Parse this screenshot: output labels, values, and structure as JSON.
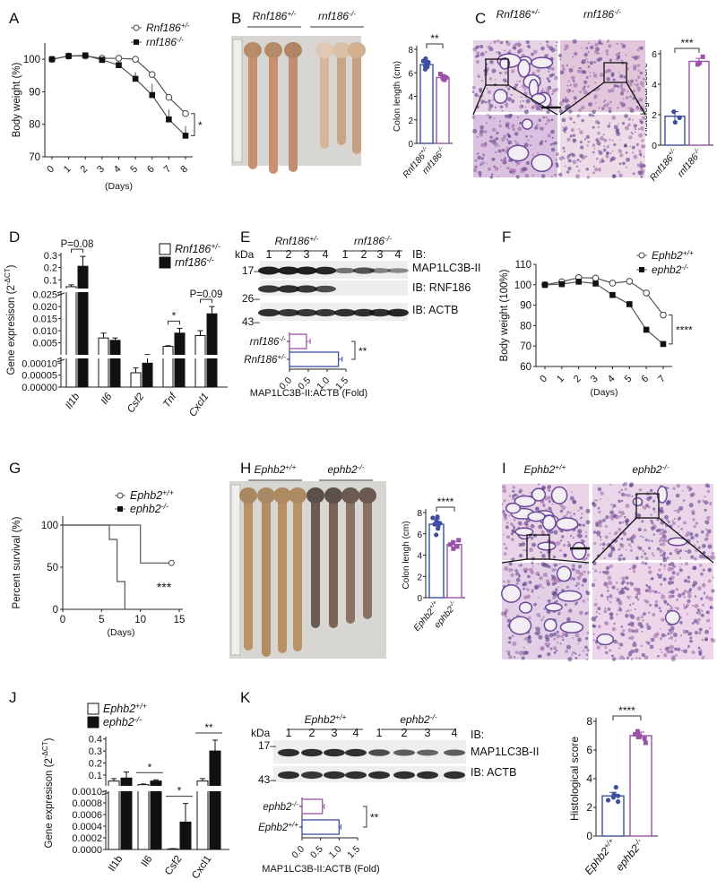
{
  "colors": {
    "wt": "#3c4ea0",
    "ko": "#9a52a8",
    "line": "#555555",
    "axis": "#222222"
  },
  "panels": [
    "A",
    "B",
    "C",
    "D",
    "E",
    "F",
    "G",
    "H",
    "I",
    "J",
    "K"
  ],
  "genotypes": {
    "rnf_het": {
      "name": "Rnf186",
      "sup": "+/-"
    },
    "rnf_ko": {
      "name": "rnf186",
      "sup": "-/-"
    },
    "eph_wt": {
      "name": "Ephb2",
      "sup": "+/+"
    },
    "eph_ko": {
      "name": "ephb2",
      "sup": "-/-"
    }
  },
  "photos": {
    "B": {
      "labels": [
        "rnf_het",
        "rnf_ko"
      ]
    },
    "H": {
      "labels": [
        "eph_wt",
        "eph_ko"
      ]
    }
  },
  "histology": {
    "C": {
      "labels": [
        "rnf_het",
        "rnf_ko"
      ]
    },
    "I": {
      "labels": [
        "eph_wt",
        "eph_ko"
      ]
    }
  },
  "blots": {
    "E": {
      "kda": "kDa",
      "markers": [
        "17–",
        "26–",
        "43–"
      ],
      "lanes": [
        "1",
        "2",
        "3",
        "4",
        "1",
        "2",
        "3",
        "4"
      ],
      "groups": [
        "rnf_het",
        "rnf_ko"
      ],
      "rows": [
        "IB:",
        "MAP1LC3B-II",
        "IB: RNF186",
        "IB: ACTB"
      ],
      "band_intensity": [
        [
          1,
          1,
          1,
          0.95,
          0.45,
          0.65,
          0.35,
          0.3
        ],
        [
          0.85,
          0.9,
          0.85,
          0.7,
          0,
          0,
          0,
          0
        ],
        [
          0.9,
          0.85,
          0.85,
          0.85,
          0.9,
          0.9,
          0.9,
          0.95
        ]
      ]
    },
    "K": {
      "kda": "kDa",
      "markers": [
        "17–",
        "43–"
      ],
      "lanes": [
        "1",
        "2",
        "3",
        "4",
        "1",
        "2",
        "3",
        "4"
      ],
      "groups": [
        "eph_wt",
        "eph_ko"
      ],
      "rows": [
        "IB:",
        "MAP1LC3B-II",
        "IB: ACTB"
      ],
      "band_intensity": [
        [
          0.9,
          0.9,
          0.9,
          0.9,
          0.7,
          0.6,
          0.55,
          0.6
        ],
        [
          0.9,
          0.85,
          0.9,
          0.9,
          0.9,
          0.9,
          0.9,
          0.9
        ]
      ]
    }
  },
  "chart_data": [
    {
      "panel": "A",
      "type": "line",
      "xlabel": "(Days)",
      "ylabel": "Body weight (%)",
      "ylim": [
        70,
        105
      ],
      "yticks": [
        70,
        80,
        90,
        100
      ],
      "x": [
        0,
        1,
        2,
        3,
        4,
        5,
        6,
        7,
        8
      ],
      "series": [
        {
          "geno": "rnf_het",
          "marker": "open-circle",
          "values": [
            100,
            101,
            101,
            100.3,
            100.3,
            100,
            95.3,
            88.3,
            83.3
          ],
          "err": [
            0,
            0,
            0,
            0,
            0,
            0,
            1,
            1,
            1
          ]
        },
        {
          "geno": "rnf_ko",
          "marker": "filled-square",
          "values": [
            100,
            101,
            101.2,
            99.8,
            98.2,
            94,
            89,
            81.5,
            76.5
          ],
          "err": [
            0,
            0,
            0,
            0,
            0,
            2,
            3.5,
            3,
            3
          ]
        }
      ],
      "significance": "*"
    },
    {
      "panel": "B",
      "type": "bar",
      "ylabel": "Colon length (cm)",
      "ylim": [
        0,
        8
      ],
      "yticks": [
        0,
        2,
        4,
        6,
        8
      ],
      "categories": [
        "rnf_het",
        "rnf_ko"
      ],
      "values": [
        6.7,
        5.6
      ],
      "err": [
        0.3,
        0.25
      ],
      "points": [
        [
          7.2,
          7.0,
          6.9,
          6.7,
          6.5,
          6.3,
          6.8,
          6.6
        ],
        [
          5.9,
          5.7,
          5.5,
          5.4,
          5.6
        ]
      ],
      "significance": "**"
    },
    {
      "panel": "C",
      "type": "bar",
      "ylabel": "Histological score",
      "ylim": [
        0,
        6
      ],
      "yticks": [
        0,
        2,
        4,
        6
      ],
      "categories": [
        "rnf_het",
        "rnf_ko"
      ],
      "values": [
        1.9,
        5.5
      ],
      "err": [
        0.3,
        0.2
      ],
      "points": [
        [
          2.2,
          1.8,
          1.5
        ],
        [
          5.8,
          5.4,
          5.3
        ]
      ],
      "significance": "***"
    },
    {
      "panel": "D",
      "type": "bar",
      "ylabel": "Gene expresison (2",
      "ylabel_sup": "-ΔCT",
      "ylabel_end": ")",
      "legend": [
        "rnf_het",
        "rnf_ko"
      ],
      "axis_segments": [
        {
          "min": 0,
          "max": 0.00012,
          "ticks": [
            0,
            5e-05,
            0.0001
          ],
          "tick_labels": [
            "0.00000",
            "0.00005",
            "0.00010"
          ]
        },
        {
          "min": 0,
          "max": 0.026,
          "ticks": [
            0.005,
            0.01,
            0.015,
            0.02,
            0.025
          ],
          "tick_labels": [
            "0.005",
            "0.010",
            "0.015",
            "0.020",
            "0.025"
          ]
        },
        {
          "min": 0.03,
          "max": 0.32,
          "ticks": [
            0.1,
            0.2,
            0.3
          ],
          "tick_labels": [
            "0.1",
            "0.2",
            "0.3"
          ]
        }
      ],
      "categories": [
        "Il1b",
        "Il6",
        "Csf2",
        "Tnf",
        "Cxcl1"
      ],
      "series": [
        {
          "geno": "rnf_het",
          "values": [
            0.045,
            0.007,
            6e-05,
            0.0035,
            0.008
          ],
          "err": [
            0.015,
            0.002,
            2e-05,
            0.0003,
            0.002
          ]
        },
        {
          "geno": "rnf_ko",
          "values": [
            0.21,
            0.006,
            0.0001,
            0.009,
            0.017
          ],
          "err": [
            0.08,
            0.001,
            3e-05,
            0.002,
            0.003
          ]
        }
      ],
      "annotations": [
        {
          "category": "Il1b",
          "text": "P=0.08"
        },
        {
          "category": "Tnf",
          "text": "*"
        },
        {
          "category": "Cxcl1",
          "text": "P=0.09"
        }
      ]
    },
    {
      "panel": "E",
      "type": "bar",
      "orientation": "horizontal",
      "xlabel": "MAP1LC3B-II:ACTB (Fold)",
      "xlim": [
        0,
        1.5
      ],
      "xticks": [
        0,
        0.5,
        1,
        1.5
      ],
      "xtick_labels": [
        "0.0",
        "0.5",
        "1.0",
        "1.5"
      ],
      "categories": [
        "rnf_ko",
        "rnf_het"
      ],
      "values": [
        0.45,
        1.3
      ],
      "err": [
        0.1,
        0.1
      ],
      "significance": "**"
    },
    {
      "panel": "F",
      "type": "line",
      "xlabel": "(Days)",
      "ylabel": "Body weight (100%)",
      "ylim": [
        60,
        110
      ],
      "yticks": [
        60,
        70,
        80,
        90,
        100,
        110
      ],
      "x": [
        0,
        1,
        2,
        3,
        4,
        5,
        6,
        7
      ],
      "series": [
        {
          "geno": "eph_wt",
          "marker": "open-circle",
          "values": [
            100,
            101.5,
            103.5,
            103.3,
            100.8,
            101.7,
            96,
            85.2
          ],
          "err": [
            0,
            0,
            0,
            0,
            0,
            0,
            0,
            0
          ]
        },
        {
          "geno": "eph_ko",
          "marker": "filled-square",
          "values": [
            100,
            100.3,
            101.5,
            100.6,
            95,
            90.5,
            78,
            71
          ],
          "err": [
            0,
            0,
            0,
            0,
            0,
            1.5,
            1.5,
            0
          ]
        }
      ],
      "significance": "****"
    },
    {
      "panel": "G",
      "type": "line",
      "subtype": "survival",
      "xlabel": "(Days)",
      "ylabel": "Percent survival (%)",
      "xlim": [
        0,
        15
      ],
      "xticks": [
        0,
        5,
        10,
        15
      ],
      "ylim": [
        0,
        100
      ],
      "yticks": [
        0,
        50,
        100
      ],
      "series": [
        {
          "geno": "eph_wt",
          "steps": [
            [
              0,
              100
            ],
            [
              10,
              100
            ],
            [
              10,
              55
            ],
            [
              14,
              55
            ]
          ],
          "censored": [
            [
              14,
              55
            ]
          ]
        },
        {
          "geno": "eph_ko",
          "steps": [
            [
              0,
              100
            ],
            [
              6,
              100
            ],
            [
              6,
              83
            ],
            [
              7,
              83
            ],
            [
              7,
              33
            ],
            [
              8,
              33
            ],
            [
              8,
              0
            ]
          ]
        }
      ],
      "significance": "***"
    },
    {
      "panel": "H",
      "type": "bar",
      "ylabel": "Colon lengh (cm)",
      "ylim": [
        0,
        8
      ],
      "yticks": [
        0,
        2,
        4,
        6,
        8
      ],
      "categories": [
        "eph_wt",
        "eph_ko"
      ],
      "values": [
        6.9,
        5.0
      ],
      "err": [
        0.5,
        0.3
      ],
      "points": [
        [
          7.6,
          7.5,
          7.2,
          7.0,
          6.9,
          6.7,
          6.5,
          5.9
        ],
        [
          5.4,
          5.2,
          5.0,
          4.8,
          4.6
        ]
      ],
      "significance": "****"
    },
    {
      "panel": "J",
      "type": "bar",
      "ylabel": "Gene expresison (2",
      "ylabel_sup": "-ΔCT",
      "ylabel_end": ")",
      "legend": [
        "eph_wt",
        "eph_ko"
      ],
      "axis_segments": [
        {
          "min": 0,
          "max": 0.001,
          "ticks": [
            0,
            0.0002,
            0.0004,
            0.0006,
            0.0008,
            0.001
          ],
          "tick_labels": [
            "0.0000",
            "0.0002",
            "0.0004",
            "0.0006",
            "0.0008",
            "0.0010"
          ]
        },
        {
          "min": 0.01,
          "max": 0.42,
          "ticks": [
            0.1,
            0.2,
            0.3,
            0.4
          ],
          "tick_labels": [
            "0.1",
            "0.2",
            "0.3",
            "0.4"
          ]
        }
      ],
      "categories": [
        "Il1b",
        "Il6",
        "Csf2",
        "Cxcl1"
      ],
      "series": [
        {
          "geno": "eph_wt",
          "values": [
            0.05,
            0.02,
            1e-05,
            0.05
          ],
          "err": [
            0.02,
            0.005,
            5e-06,
            0.02
          ]
        },
        {
          "geno": "eph_ko",
          "values": [
            0.075,
            0.05,
            0.00047,
            0.3
          ],
          "err": [
            0.05,
            0.01,
            0.00032,
            0.09
          ]
        }
      ],
      "annotations": [
        {
          "category": "Il6",
          "text": "*"
        },
        {
          "category": "Csf2",
          "text": "*"
        },
        {
          "category": "Cxcl1",
          "text": "**"
        }
      ]
    },
    {
      "panel": "K",
      "type": "bar",
      "orientation": "horizontal",
      "xlabel": "MAP1LC3B-II:ACTB (Fold)",
      "xlim": [
        0,
        1.5
      ],
      "xticks": [
        0,
        0.5,
        1,
        1.5
      ],
      "xtick_labels": [
        "0.0",
        "0.5",
        "1.0",
        "1.5"
      ],
      "categories": [
        "eph_ko",
        "eph_wt"
      ],
      "values": [
        0.55,
        1.0
      ],
      "err": [
        0.05,
        0.05
      ],
      "significance": "**"
    },
    {
      "panel": "K2",
      "type": "bar",
      "ylabel": "Histological score",
      "ylim": [
        0,
        8
      ],
      "yticks": [
        0,
        2,
        4,
        6,
        8
      ],
      "categories": [
        "eph_wt",
        "eph_ko"
      ],
      "values": [
        2.8,
        7.0
      ],
      "err": [
        0.25,
        0.25
      ],
      "points": [
        [
          3.4,
          2.9,
          2.8,
          2.7,
          2.5,
          2.4
        ],
        [
          7.3,
          7.1,
          7.0,
          6.9,
          6.8,
          6.5
        ]
      ],
      "significance": "****"
    }
  ]
}
